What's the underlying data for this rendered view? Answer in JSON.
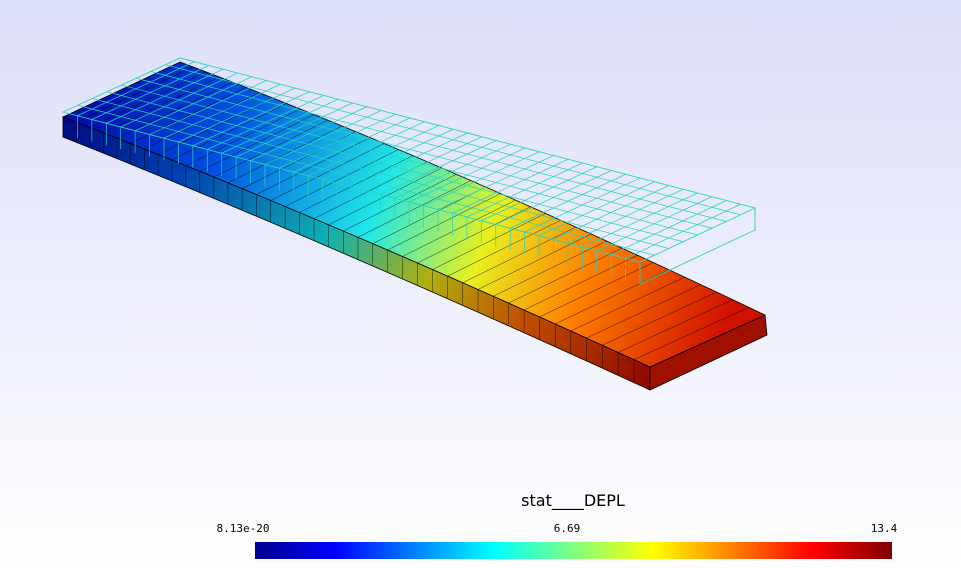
{
  "colorbar": {
    "title": "stat____DEPL",
    "labels": [
      "8.13e-20",
      "6.69",
      "13.4"
    ]
  }
}
